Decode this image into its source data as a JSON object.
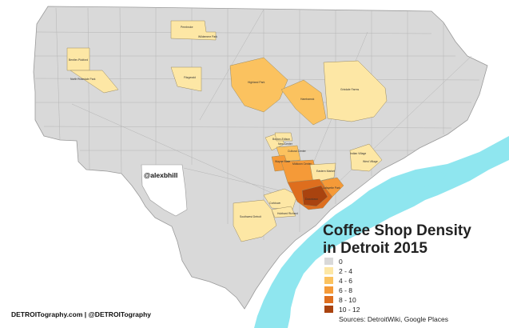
{
  "title": {
    "line1": "Coffee Shop Density",
    "line2": "in Detroit 2015"
  },
  "handle": "@alexbhill",
  "footer": "DETROITography.com | @DETROITography",
  "sources": "Sources: DetroitWiki, Google Places",
  "legend": [
    {
      "label": "0",
      "color": "#d9d9d9"
    },
    {
      "label": "2 - 4",
      "color": "#fde7a5"
    },
    {
      "label": "4 - 6",
      "color": "#fbc25f"
    },
    {
      "label": "6 - 8",
      "color": "#f59a38"
    },
    {
      "label": "8 - 10",
      "color": "#de6e1e"
    },
    {
      "label": "10 - 12",
      "color": "#a9430f"
    }
  ],
  "colors": {
    "base": "#d9d9d9",
    "river": "#8fe6ef",
    "streets": "#b4b4b4"
  },
  "neighborhoods": [
    "Pembroke",
    "Wildemere Park",
    "Bentler-Pickford",
    "North Rosedale Park",
    "Fitzgerald",
    "Highland Park",
    "Hamtramck",
    "Grixdale Farms",
    "Boston-Edison",
    "New Center",
    "Cultural Center",
    "Wayne State",
    "Midtown Center",
    "Eastern Market",
    "Indian Village",
    "West Village",
    "Corktown",
    "Southwest Detroit",
    "Hubbard Richard",
    "Lafayette Park",
    "Downtown"
  ]
}
